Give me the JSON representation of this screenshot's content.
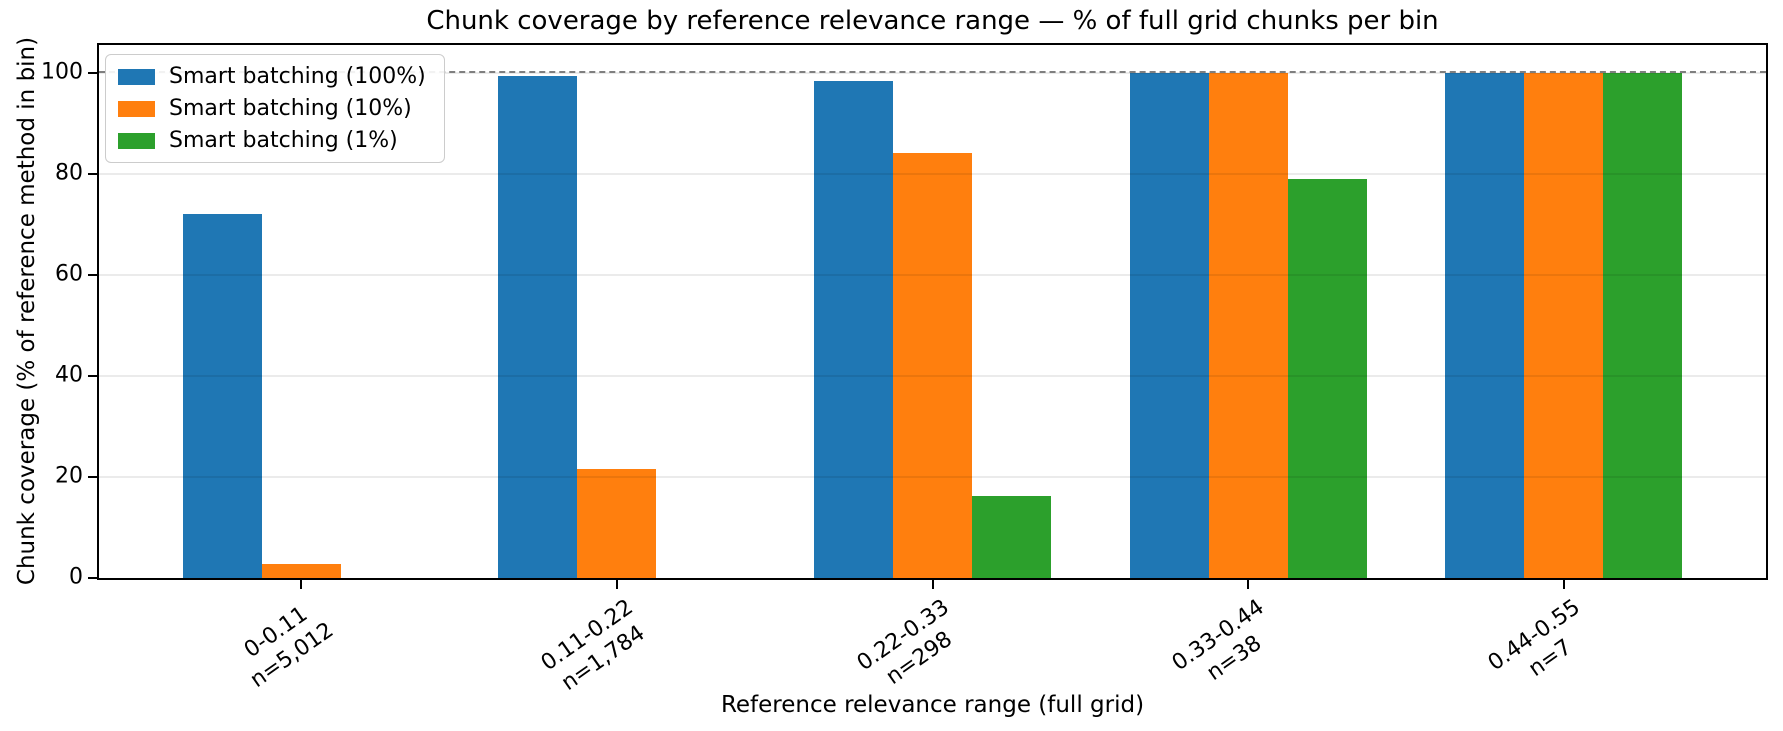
{
  "chart_data": {
    "type": "bar",
    "title": "Chunk coverage by reference relevance range — % of full grid chunks per bin",
    "xlabel": "Reference relevance range (full grid)",
    "ylabel": "Chunk coverage (% of reference method in bin)",
    "categories": [
      "0-0.11",
      "0.11-0.22",
      "0.22-0.33",
      "0.33-0.44",
      "0.44-0.55"
    ],
    "category_counts": [
      "n=5,012",
      "n=1,784",
      "n=298",
      "n=38",
      "n=7"
    ],
    "series": [
      {
        "name": "Smart batching (100%)",
        "color": "#1f77b4",
        "values": [
          72,
          99.4,
          98.3,
          100,
          100
        ]
      },
      {
        "name": "Smart batching (10%)",
        "color": "#ff7f0e",
        "values": [
          2.7,
          21.6,
          84.1,
          100,
          100
        ]
      },
      {
        "name": "Smart batching (1%)",
        "color": "#2ca02c",
        "values": [
          0,
          0,
          16.3,
          79,
          100
        ]
      }
    ],
    "yticks": [
      0,
      20,
      40,
      60,
      80,
      100
    ],
    "ylim": [
      0,
      105.5
    ],
    "reference_line_y": 100,
    "grid": true,
    "grid_on_top_of_bars": true,
    "legend_position": "upper-left",
    "background_color": "#ffffff",
    "reference_line_color": "#7f7f7f",
    "xtick_rotation_deg": 35
  }
}
